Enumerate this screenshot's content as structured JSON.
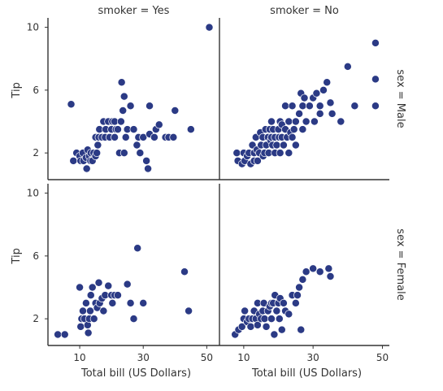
{
  "chart_data": [
    {
      "type": "scatter",
      "title": "smoker = Yes",
      "row_label": "",
      "xlabel": "",
      "ylabel": "Tip",
      "xlim": [
        0,
        54
      ],
      "ylim": [
        0.3,
        10.6
      ],
      "xticks": [],
      "yticks": [
        2,
        6,
        10
      ],
      "color": "#2b3a85",
      "points": [
        [
          7.3,
          5.1
        ],
        [
          8.0,
          1.5
        ],
        [
          9.0,
          2.0
        ],
        [
          10.0,
          1.8
        ],
        [
          10.3,
          1.5
        ],
        [
          11.0,
          2.0
        ],
        [
          11.2,
          1.5
        ],
        [
          12.0,
          1.7
        ],
        [
          12.2,
          1.0
        ],
        [
          12.5,
          2.2
        ],
        [
          13.0,
          1.8
        ],
        [
          13.4,
          1.5
        ],
        [
          13.5,
          2.0
        ],
        [
          14.0,
          1.5
        ],
        [
          14.4,
          2.0
        ],
        [
          15.0,
          1.8
        ],
        [
          15.4,
          2.0
        ],
        [
          15.7,
          2.5
        ],
        [
          15.0,
          3.0
        ],
        [
          16.0,
          3.0
        ],
        [
          16.2,
          3.5
        ],
        [
          17.0,
          3.0
        ],
        [
          17.5,
          4.0
        ],
        [
          18.0,
          3.0
        ],
        [
          18.2,
          3.5
        ],
        [
          19.0,
          4.0
        ],
        [
          19.4,
          3.0
        ],
        [
          20.0,
          3.5
        ],
        [
          20.3,
          4.0
        ],
        [
          21.0,
          3.0
        ],
        [
          21.4,
          3.5
        ],
        [
          21.0,
          4.0
        ],
        [
          22.0,
          3.5
        ],
        [
          22.5,
          2.0
        ],
        [
          23.0,
          4.0
        ],
        [
          23.6,
          4.7
        ],
        [
          23.2,
          6.5
        ],
        [
          24.0,
          5.6
        ],
        [
          24.0,
          2.0
        ],
        [
          24.5,
          3.0
        ],
        [
          25.0,
          3.5
        ],
        [
          26.0,
          5.0
        ],
        [
          27.0,
          3.5
        ],
        [
          28.0,
          2.5
        ],
        [
          28.5,
          3.0
        ],
        [
          29.0,
          2.0
        ],
        [
          30.0,
          3.0
        ],
        [
          31.0,
          1.5
        ],
        [
          31.5,
          1.0
        ],
        [
          32.0,
          3.2
        ],
        [
          32.0,
          5.0
        ],
        [
          33.5,
          3.0
        ],
        [
          34.0,
          3.5
        ],
        [
          35.0,
          3.8
        ],
        [
          37.0,
          3.0
        ],
        [
          38.0,
          3.0
        ],
        [
          39.5,
          3.0
        ],
        [
          40.0,
          4.7
        ],
        [
          45.0,
          3.5
        ],
        [
          50.8,
          10.0
        ]
      ]
    },
    {
      "type": "scatter",
      "title": "smoker = No",
      "row_label": "sex = Male",
      "xlabel": "",
      "ylabel": "",
      "xlim": [
        3,
        52
      ],
      "ylim": [
        0.3,
        10.6
      ],
      "xticks": [],
      "yticks": [],
      "color": "#2b3a85",
      "points": [
        [
          8.0,
          2.0
        ],
        [
          8.3,
          1.5
        ],
        [
          9.5,
          1.3
        ],
        [
          10.0,
          2.0
        ],
        [
          10.3,
          1.5
        ],
        [
          11.0,
          1.8
        ],
        [
          11.5,
          2.0
        ],
        [
          12.0,
          1.3
        ],
        [
          12.5,
          2.5
        ],
        [
          13.0,
          1.5
        ],
        [
          13.0,
          2.0
        ],
        [
          13.5,
          3.0
        ],
        [
          13.8,
          2.2
        ],
        [
          14.0,
          1.5
        ],
        [
          14.5,
          2.0
        ],
        [
          14.8,
          3.3
        ],
        [
          15.0,
          2.5
        ],
        [
          15.5,
          3.0
        ],
        [
          15.6,
          1.8
        ],
        [
          16.0,
          2.0
        ],
        [
          16.3,
          3.5
        ],
        [
          16.5,
          2.5
        ],
        [
          17.0,
          3.0
        ],
        [
          17.2,
          2.0
        ],
        [
          17.5,
          3.5
        ],
        [
          17.8,
          2.8
        ],
        [
          18.0,
          3.0
        ],
        [
          18.0,
          4.0
        ],
        [
          18.3,
          2.5
        ],
        [
          18.5,
          3.5
        ],
        [
          19.0,
          2.0
        ],
        [
          19.0,
          3.0
        ],
        [
          19.5,
          2.5
        ],
        [
          20.0,
          3.5
        ],
        [
          20.2,
          3.0
        ],
        [
          20.5,
          4.0
        ],
        [
          20.5,
          2.0
        ],
        [
          21.0,
          3.0
        ],
        [
          21.0,
          3.8
        ],
        [
          21.5,
          2.5
        ],
        [
          22.0,
          3.5
        ],
        [
          22.0,
          5.0
        ],
        [
          22.5,
          3.0
        ],
        [
          23.0,
          4.0
        ],
        [
          23.0,
          2.0
        ],
        [
          23.5,
          3.3
        ],
        [
          24.0,
          3.0
        ],
        [
          24.0,
          5.0
        ],
        [
          24.5,
          3.5
        ],
        [
          25.0,
          2.5
        ],
        [
          25.0,
          4.0
        ],
        [
          26.0,
          4.5
        ],
        [
          26.5,
          5.8
        ],
        [
          27.0,
          3.5
        ],
        [
          27.0,
          5.0
        ],
        [
          27.5,
          5.5
        ],
        [
          28.0,
          4.0
        ],
        [
          29.0,
          5.0
        ],
        [
          30.0,
          5.5
        ],
        [
          30.4,
          4.0
        ],
        [
          31.0,
          5.8
        ],
        [
          32.0,
          4.5
        ],
        [
          32.0,
          5.0
        ],
        [
          33.0,
          6.0
        ],
        [
          34.0,
          6.5
        ],
        [
          35.0,
          5.2
        ],
        [
          35.5,
          4.5
        ],
        [
          38.0,
          4.0
        ],
        [
          40.0,
          7.5
        ],
        [
          42.0,
          5.0
        ],
        [
          48.0,
          9.0
        ],
        [
          48.0,
          6.7
        ],
        [
          48.0,
          5.0
        ]
      ]
    },
    {
      "type": "scatter",
      "title": "",
      "row_label": "",
      "xlabel": "Total bill (US Dollars)",
      "ylabel": "Tip",
      "xlim": [
        0,
        54
      ],
      "ylim": [
        0.3,
        10.6
      ],
      "xticks": [
        10,
        30,
        50
      ],
      "yticks": [
        2,
        6,
        10
      ],
      "color": "#2b3a85",
      "points": [
        [
          3.1,
          1.0
        ],
        [
          5.3,
          1.0
        ],
        [
          10.0,
          4.0
        ],
        [
          10.3,
          1.5
        ],
        [
          10.6,
          2.0
        ],
        [
          11.0,
          2.5
        ],
        [
          11.5,
          2.0
        ],
        [
          12.0,
          3.0
        ],
        [
          12.5,
          1.6
        ],
        [
          12.7,
          1.1
        ],
        [
          13.0,
          2.0
        ],
        [
          13.3,
          2.5
        ],
        [
          13.5,
          3.5
        ],
        [
          14.0,
          4.0
        ],
        [
          14.5,
          2.0
        ],
        [
          15.0,
          3.0
        ],
        [
          15.5,
          2.7
        ],
        [
          16.0,
          4.3
        ],
        [
          16.3,
          3.0
        ],
        [
          17.0,
          3.3
        ],
        [
          17.5,
          2.5
        ],
        [
          18.0,
          3.5
        ],
        [
          19.0,
          4.1
        ],
        [
          20.0,
          3.5
        ],
        [
          20.3,
          3.0
        ],
        [
          21.0,
          3.5
        ],
        [
          22.0,
          3.5
        ],
        [
          25.0,
          4.2
        ],
        [
          26.0,
          3.0
        ],
        [
          27.0,
          2.0
        ],
        [
          28.2,
          6.5
        ],
        [
          30.0,
          3.0
        ],
        [
          43.0,
          5.0
        ],
        [
          44.3,
          2.5
        ]
      ]
    },
    {
      "type": "scatter",
      "title": "",
      "row_label": "sex = Female",
      "xlabel": "Total bill (US Dollars)",
      "ylabel": "",
      "xlim": [
        3,
        52
      ],
      "ylim": [
        0.3,
        10.6
      ],
      "xticks": [
        10,
        30,
        50
      ],
      "yticks": [],
      "color": "#2b3a85",
      "points": [
        [
          7.5,
          1.0
        ],
        [
          8.5,
          1.3
        ],
        [
          9.5,
          1.5
        ],
        [
          10.0,
          2.0
        ],
        [
          10.3,
          2.5
        ],
        [
          11.0,
          1.8
        ],
        [
          11.5,
          2.0
        ],
        [
          12.0,
          1.5
        ],
        [
          12.5,
          2.0
        ],
        [
          13.0,
          2.5
        ],
        [
          13.5,
          2.0
        ],
        [
          14.0,
          1.6
        ],
        [
          14.0,
          3.0
        ],
        [
          14.5,
          2.3
        ],
        [
          15.0,
          2.0
        ],
        [
          15.5,
          2.5
        ],
        [
          15.8,
          3.0
        ],
        [
          16.0,
          2.0
        ],
        [
          16.5,
          1.5
        ],
        [
          17.0,
          2.5
        ],
        [
          17.5,
          2.8
        ],
        [
          18.0,
          3.0
        ],
        [
          18.0,
          2.0
        ],
        [
          18.5,
          3.0
        ],
        [
          18.8,
          1.0
        ],
        [
          19.0,
          3.5
        ],
        [
          19.5,
          2.5
        ],
        [
          20.0,
          3.0
        ],
        [
          20.3,
          2.0
        ],
        [
          20.5,
          3.3
        ],
        [
          21.0,
          1.3
        ],
        [
          21.5,
          3.0
        ],
        [
          22.0,
          2.5
        ],
        [
          23.0,
          2.3
        ],
        [
          24.0,
          3.5
        ],
        [
          25.0,
          3.0
        ],
        [
          25.5,
          3.5
        ],
        [
          26.0,
          4.0
        ],
        [
          26.5,
          1.3
        ],
        [
          27.0,
          4.5
        ],
        [
          28.0,
          5.0
        ],
        [
          30.0,
          5.2
        ],
        [
          32.0,
          5.0
        ],
        [
          34.5,
          5.2
        ],
        [
          35.0,
          4.7
        ]
      ]
    }
  ]
}
